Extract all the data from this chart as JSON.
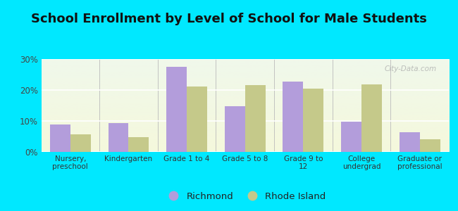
{
  "title": "School Enrollment by Level of School for Male Students",
  "categories": [
    "Nursery,\npreschool",
    "Kindergarten",
    "Grade 1 to 4",
    "Grade 5 to 8",
    "Grade 9 to\n12",
    "College\nundergrad",
    "Graduate or\nprofessional"
  ],
  "richmond": [
    8.8,
    9.3,
    27.5,
    14.8,
    22.8,
    9.7,
    6.3
  ],
  "rhode_island": [
    5.7,
    4.7,
    21.1,
    21.6,
    20.5,
    21.9,
    4.2
  ],
  "richmond_color": "#b39ddb",
  "rhode_island_color": "#c5c98a",
  "background_outer": "#00e8ff",
  "ylim": [
    0,
    30
  ],
  "yticks": [
    0,
    10,
    20,
    30
  ],
  "ytick_labels": [
    "0%",
    "10%",
    "20%",
    "30%"
  ],
  "legend_richmond": "Richmond",
  "legend_rhode_island": "Rhode Island",
  "title_fontsize": 13,
  "watermark": "City-Data.com",
  "bg_top_color": "#f0f8f0",
  "bg_bottom_color": "#f5f5dc"
}
